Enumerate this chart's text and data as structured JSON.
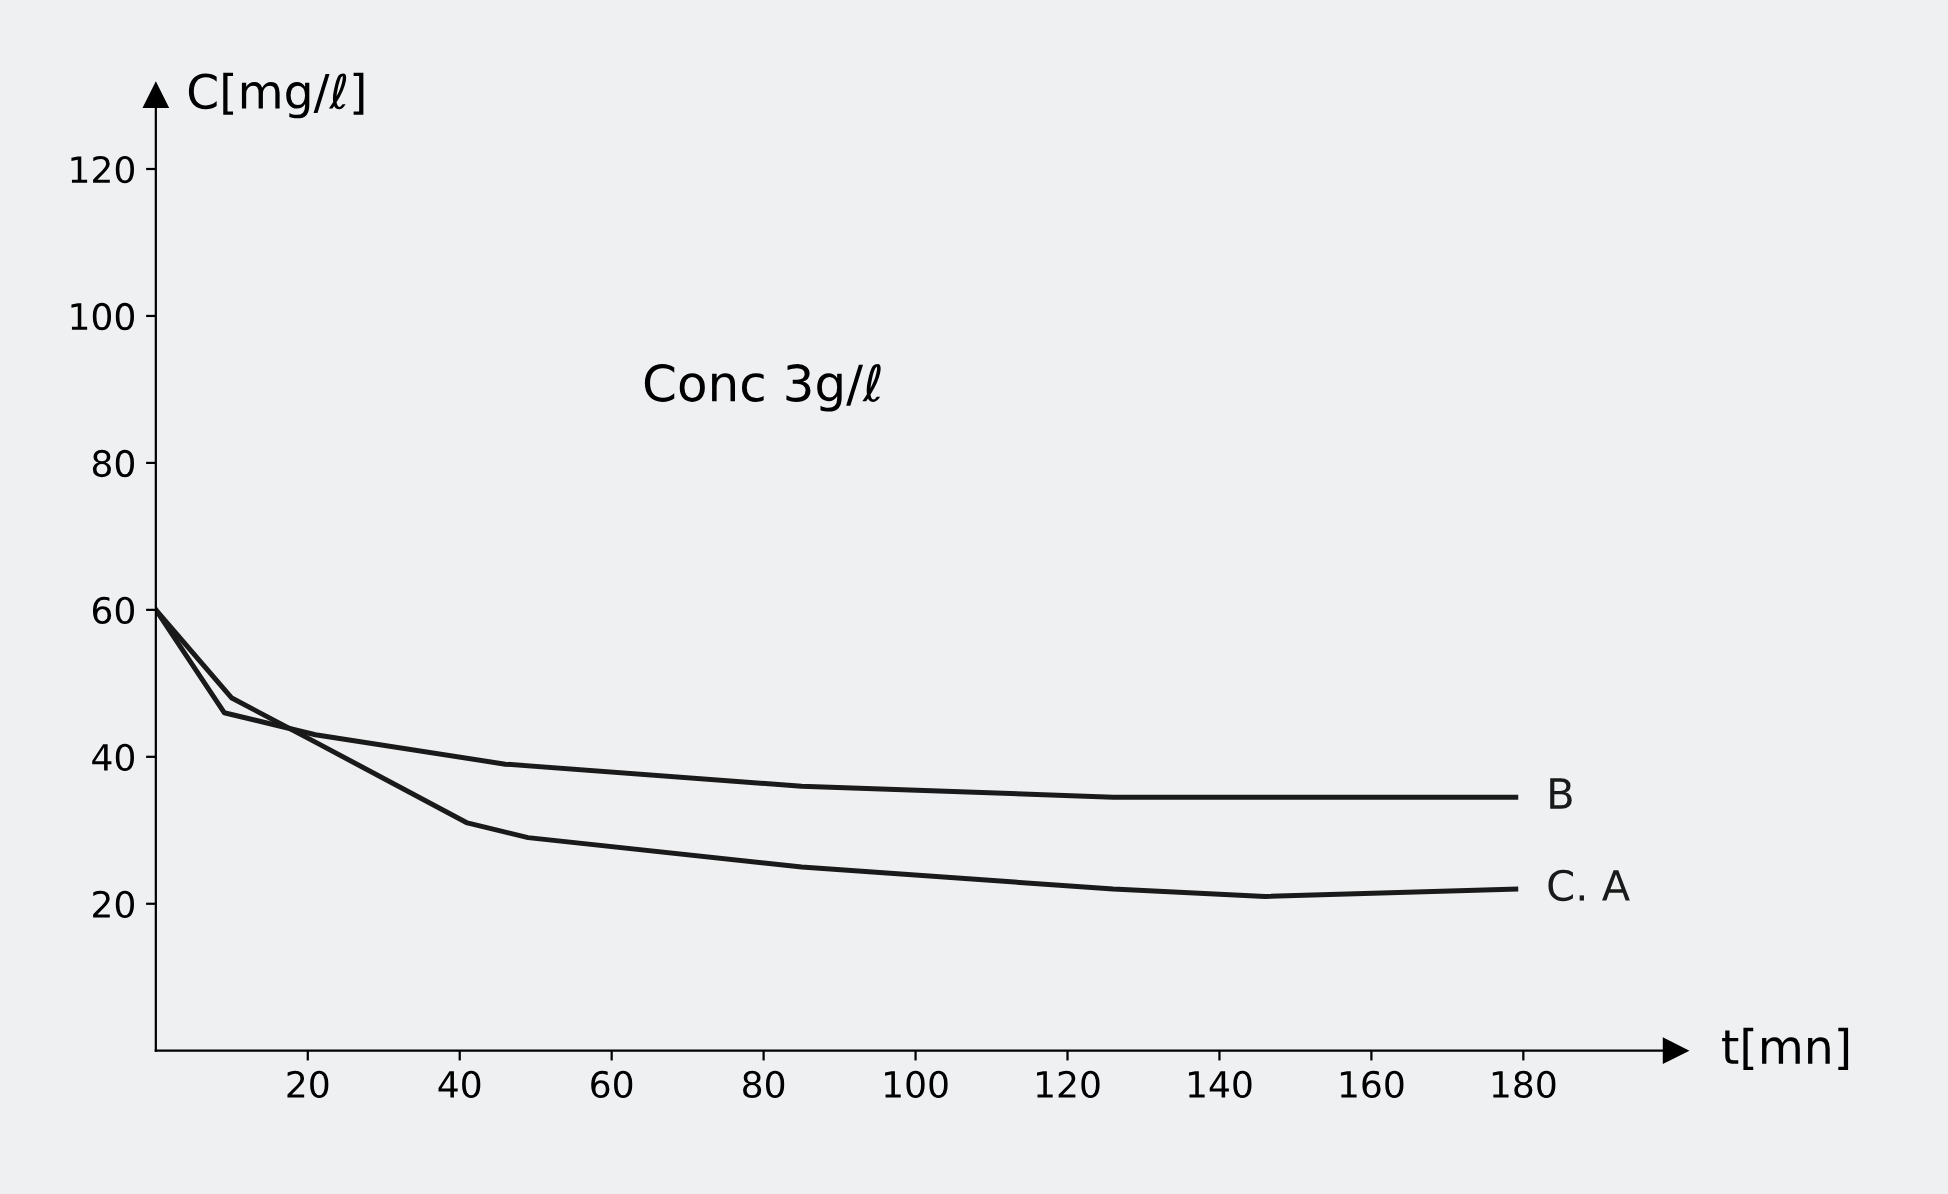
{
  "chart_data": {
    "type": "line",
    "xlabel": "t[mn]",
    "ylabel": "C[mg/ℓ]",
    "annotations": [
      "Conc 3g/ℓ"
    ],
    "xlim": [
      0,
      200
    ],
    "ylim": [
      0,
      130
    ],
    "xticks": [
      20,
      40,
      60,
      80,
      100,
      120,
      140,
      160,
      180
    ],
    "yticks": [
      20,
      40,
      60,
      80,
      100,
      120
    ],
    "grid": false,
    "legend": false,
    "marker": "none",
    "line_style": "solid",
    "series": [
      {
        "name": "B",
        "color": "#1a1a1a",
        "x": [
          0,
          9,
          21,
          46,
          85,
          126,
          179
        ],
        "values": [
          60,
          46,
          43,
          39,
          36,
          34.5,
          34.5
        ]
      },
      {
        "name": "C. A",
        "color": "#1a1a1a",
        "x": [
          0,
          10,
          21,
          41,
          49,
          85,
          126,
          146,
          179
        ],
        "values": [
          60,
          48,
          42,
          31,
          29,
          25,
          22,
          21,
          22
        ]
      }
    ]
  }
}
